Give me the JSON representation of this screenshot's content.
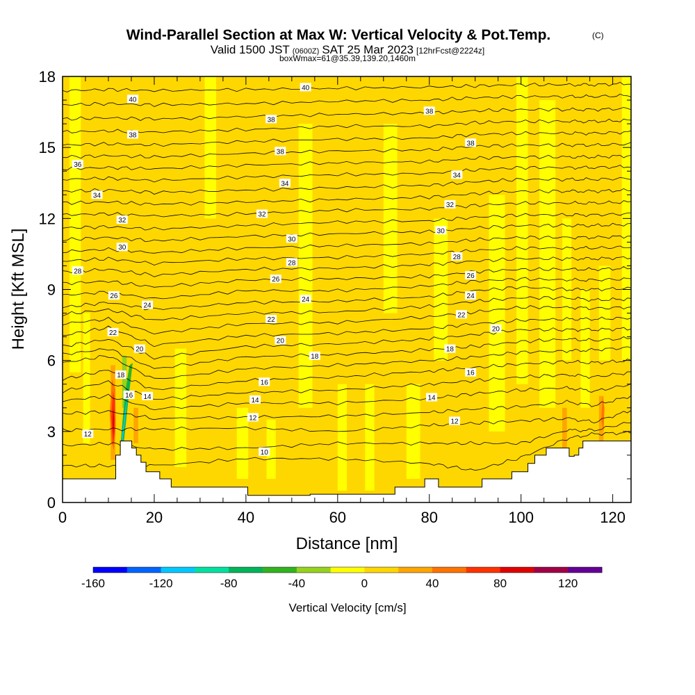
{
  "chart_data": {
    "type": "heatmap",
    "title": "Wind-Parallel Section at Max W: Vertical Velocity & Pot.Temp.",
    "title_mark": "(C)",
    "subtitle_main_a": "Valid 1500 JST",
    "subtitle_small_a": "(0600Z)",
    "subtitle_main_b": "SAT 25 Mar 2023",
    "subtitle_small_b": "[12hrFcst@2224z]",
    "subtitle2": "boxWmax=61@35.39,139.20,1460m",
    "xlabel": "Distance [nm]",
    "ylabel": "Height [Kft MSL]",
    "xlim": [
      0,
      124
    ],
    "ylim": [
      0,
      18
    ],
    "x_ticks": [
      0,
      20,
      40,
      60,
      80,
      100,
      120
    ],
    "y_ticks": [
      0,
      3,
      6,
      9,
      12,
      15,
      18
    ],
    "colorbar": {
      "label": "Vertical Velocity [cm/s]",
      "min": -160,
      "max": 140,
      "step": 20,
      "tick_values": [
        -160,
        -120,
        -80,
        -40,
        0,
        40,
        80,
        120
      ],
      "tick_labels": [
        "-160",
        "-120",
        "-80",
        "-40",
        "0",
        "40",
        "80",
        "120"
      ],
      "colors": [
        "#0000ff",
        "#0064ff",
        "#00c8ff",
        "#00e1a0",
        "#00b45a",
        "#32b41e",
        "#96d21e",
        "#ffff00",
        "#ffd700",
        "#ffa500",
        "#ff7300",
        "#ff3200",
        "#e10000",
        "#a00046",
        "#640096"
      ]
    },
    "terrain": [
      [
        0,
        1.0
      ],
      [
        11.6,
        1.0
      ],
      [
        11.6,
        2.0
      ],
      [
        12.6,
        2.0
      ],
      [
        12.6,
        2.6
      ],
      [
        15.1,
        2.6
      ],
      [
        15.1,
        2.3
      ],
      [
        16.1,
        2.3
      ],
      [
        16.1,
        2.0
      ],
      [
        17.1,
        2.0
      ],
      [
        17.1,
        1.7
      ],
      [
        18.2,
        1.7
      ],
      [
        18.2,
        1.3
      ],
      [
        21.2,
        1.3
      ],
      [
        21.2,
        1.0
      ],
      [
        23.7,
        1.0
      ],
      [
        23.7,
        0.65
      ],
      [
        40.4,
        0.65
      ],
      [
        40.4,
        0.3
      ],
      [
        54.0,
        0.3
      ],
      [
        54.0,
        0.35
      ],
      [
        72.5,
        0.35
      ],
      [
        72.5,
        0.65
      ],
      [
        79.0,
        0.65
      ],
      [
        79.0,
        1.0
      ],
      [
        82.0,
        1.0
      ],
      [
        82.0,
        0.65
      ],
      [
        91.5,
        0.65
      ],
      [
        91.5,
        1.0
      ],
      [
        98.0,
        1.0
      ],
      [
        98.0,
        1.3
      ],
      [
        101.5,
        1.3
      ],
      [
        101.5,
        1.65
      ],
      [
        103.0,
        1.65
      ],
      [
        103.0,
        2.0
      ],
      [
        105.5,
        2.0
      ],
      [
        105.5,
        2.3
      ],
      [
        110.5,
        2.3
      ],
      [
        110.5,
        1.95
      ],
      [
        111.6,
        1.95
      ],
      [
        111.6,
        2.0
      ],
      [
        112.6,
        2.0
      ],
      [
        112.6,
        2.3
      ],
      [
        113.5,
        2.3
      ],
      [
        113.5,
        2.6
      ],
      [
        124,
        2.6
      ]
    ],
    "w_bands": [
      {
        "x0": 0,
        "x1": 124,
        "y0": 0,
        "y1": 18,
        "w": 10
      },
      {
        "x0": 1.5,
        "x1": 4.0,
        "y0": 5.5,
        "y1": 18,
        "w": -10
      },
      {
        "x0": 4.5,
        "x1": 6.0,
        "y0": 2.5,
        "y1": 8.0,
        "w": -10
      },
      {
        "x0": 24.5,
        "x1": 27.0,
        "y0": 1.5,
        "y1": 6.5,
        "w": -10
      },
      {
        "x0": 31.0,
        "x1": 33.5,
        "y0": 12.0,
        "y1": 18,
        "w": -10
      },
      {
        "x0": 38.0,
        "x1": 40.5,
        "y0": 1.0,
        "y1": 4.0,
        "w": -10
      },
      {
        "x0": 44.5,
        "x1": 46.5,
        "y0": 1.0,
        "y1": 3.5,
        "w": -10
      },
      {
        "x0": 51.5,
        "x1": 54.5,
        "y0": 4.0,
        "y1": 16.0,
        "w": -10
      },
      {
        "x0": 60.0,
        "x1": 62.0,
        "y0": 0.5,
        "y1": 5.0,
        "w": -10
      },
      {
        "x0": 66.0,
        "x1": 68.0,
        "y0": 0.5,
        "y1": 5.0,
        "w": -10
      },
      {
        "x0": 70.0,
        "x1": 73.0,
        "y0": 8.0,
        "y1": 16.0,
        "w": -10
      },
      {
        "x0": 75.0,
        "x1": 78.0,
        "y0": 1.0,
        "y1": 5.0,
        "w": -10
      },
      {
        "x0": 81.0,
        "x1": 84.0,
        "y0": 6.0,
        "y1": 12.0,
        "w": -10
      },
      {
        "x0": 93.0,
        "x1": 96.5,
        "y0": 3.0,
        "y1": 13.0,
        "w": -10
      },
      {
        "x0": 99.0,
        "x1": 101.5,
        "y0": 5.0,
        "y1": 18,
        "w": -10
      },
      {
        "x0": 104.0,
        "x1": 107.5,
        "y0": 4.0,
        "y1": 17.0,
        "w": -10
      },
      {
        "x0": 109.0,
        "x1": 111.0,
        "y0": 6.0,
        "y1": 12.0,
        "w": -10
      },
      {
        "x0": 113.0,
        "x1": 115.0,
        "y0": 4.0,
        "y1": 9.0,
        "w": -10
      },
      {
        "x0": 117.0,
        "x1": 119.5,
        "y0": 6.0,
        "y1": 14.0,
        "w": -10
      },
      {
        "x0": 122.0,
        "x1": 124.0,
        "y0": 6.0,
        "y1": 18,
        "w": -10
      },
      {
        "x0": 116.5,
        "x1": 120.0,
        "y0": 10.0,
        "y1": 18,
        "w": 10
      },
      {
        "x0": 10.5,
        "x1": 11.5,
        "y0": 1.8,
        "y1": 5.8,
        "w": 30
      },
      {
        "x0": 15.5,
        "x1": 16.5,
        "y0": 2.5,
        "y1": 4.0,
        "w": 30
      },
      {
        "x0": 109.0,
        "x1": 110.0,
        "y0": 2.3,
        "y1": 4.0,
        "w": 30
      },
      {
        "x0": 117.0,
        "x1": 118.0,
        "y0": 2.6,
        "y1": 4.5,
        "w": 30
      },
      {
        "x0": 13.0,
        "x1": 14.0,
        "y0": 4.0,
        "y1": 6.2,
        "w": -30
      }
    ],
    "w_shapes": [
      {
        "w": 50,
        "points": [
          [
            10.3,
            3.8
          ],
          [
            10.8,
            5.2
          ],
          [
            11.5,
            4.8
          ],
          [
            11.6,
            3.2
          ],
          [
            11.2,
            2.2
          ],
          [
            10.6,
            2.6
          ]
        ]
      },
      {
        "w": 70,
        "points": [
          [
            10.6,
            3.6
          ],
          [
            11.0,
            4.7
          ],
          [
            11.4,
            4.3
          ],
          [
            11.4,
            3.0
          ],
          [
            11.0,
            2.4
          ]
        ]
      },
      {
        "w": 90,
        "points": [
          [
            10.9,
            3.4
          ],
          [
            11.1,
            4.0
          ],
          [
            11.3,
            3.5
          ],
          [
            11.1,
            2.8
          ]
        ]
      },
      {
        "w": -50,
        "points": [
          [
            12.7,
            2.6
          ],
          [
            13.6,
            4.6
          ],
          [
            14.6,
            5.8
          ],
          [
            15.3,
            5.9
          ],
          [
            14.4,
            4.4
          ],
          [
            13.4,
            2.6
          ]
        ]
      },
      {
        "w": -70,
        "points": [
          [
            12.8,
            2.6
          ],
          [
            13.7,
            4.3
          ],
          [
            14.4,
            5.3
          ],
          [
            14.7,
            5.1
          ],
          [
            13.9,
            3.8
          ],
          [
            13.2,
            2.6
          ]
        ]
      },
      {
        "w": -110,
        "points": [
          [
            12.9,
            2.7
          ],
          [
            13.7,
            4.0
          ],
          [
            14.2,
            4.5
          ],
          [
            13.6,
            3.4
          ],
          [
            13.1,
            2.6
          ]
        ]
      },
      {
        "w": 50,
        "points": [
          [
            117.5,
            3.5
          ],
          [
            117.8,
            4.5
          ],
          [
            118.2,
            4.0
          ],
          [
            118.0,
            3.0
          ]
        ]
      }
    ],
    "theta_levels": [
      10,
      11,
      12,
      13,
      14,
      15,
      16,
      17,
      18,
      19,
      20,
      21,
      22,
      23,
      24,
      25,
      26,
      27,
      28,
      29,
      30,
      31,
      32,
      33,
      34,
      35,
      36,
      37,
      38,
      39,
      40,
      41
    ],
    "theta_height_profiles": [
      {
        "x": 0,
        "h": [
          1.55,
          2.4,
          3.05,
          3.75,
          4.3,
          4.7,
          5.2,
          5.9,
          6.25,
          6.6,
          7.05,
          7.55,
          7.95,
          8.25,
          8.75,
          9.25,
          9.75,
          10.2,
          10.6,
          11.1,
          11.6,
          12.15,
          12.65,
          13.15,
          13.65,
          14.1,
          14.6,
          15.1,
          15.65,
          16.2,
          16.8,
          17.4
        ]
      },
      {
        "x": 10,
        "h": [
          1.55,
          2.5,
          3.1,
          3.85,
          4.5,
          5.1,
          5.6,
          6.2,
          6.5,
          6.9,
          7.4,
          7.75,
          8.15,
          8.45,
          8.9,
          9.35,
          9.85,
          10.3,
          10.7,
          11.2,
          11.65,
          12.2,
          12.7,
          13.2,
          13.7,
          14.15,
          14.65,
          15.15,
          15.7,
          16.25,
          16.85,
          17.45
        ]
      },
      {
        "x": 20,
        "h": [
          1.55,
          2.25,
          3.1,
          3.55,
          3.95,
          4.35,
          4.75,
          5.2,
          5.65,
          6.1,
          6.65,
          7.15,
          7.7,
          8.15,
          8.6,
          9.1,
          9.6,
          10.1,
          10.55,
          11.05,
          11.55,
          12.1,
          12.6,
          13.1,
          13.6,
          14.1,
          14.6,
          15.1,
          15.65,
          16.2,
          16.8,
          17.4
        ]
      },
      {
        "x": 40,
        "h": [
          1.85,
          2.3,
          3.15,
          3.6,
          4.2,
          4.65,
          5.15,
          5.65,
          6.15,
          6.6,
          7.05,
          7.55,
          8.0,
          8.45,
          8.95,
          9.4,
          9.85,
          10.3,
          10.75,
          11.25,
          11.7,
          12.2,
          12.7,
          13.2,
          13.75,
          14.25,
          14.75,
          15.25,
          15.75,
          16.3,
          16.85,
          17.45
        ]
      },
      {
        "x": 60,
        "h": [
          1.85,
          2.5,
          3.0,
          3.65,
          4.2,
          4.75,
          5.3,
          5.8,
          6.25,
          6.7,
          7.15,
          7.6,
          8.05,
          8.5,
          8.95,
          9.45,
          9.9,
          10.35,
          10.85,
          11.35,
          11.85,
          12.35,
          12.8,
          13.3,
          13.85,
          14.35,
          14.85,
          15.35,
          15.9,
          16.4,
          16.95,
          17.5
        ]
      },
      {
        "x": 80,
        "h": [
          1.65,
          2.5,
          3.25,
          3.8,
          4.4,
          5.0,
          5.55,
          6.0,
          6.45,
          6.9,
          7.35,
          7.85,
          8.3,
          8.7,
          9.15,
          9.55,
          10.05,
          10.5,
          10.95,
          11.45,
          11.9,
          12.4,
          12.9,
          13.4,
          13.9,
          14.4,
          14.9,
          15.4,
          15.9,
          16.45,
          17.0,
          17.55
        ]
      },
      {
        "x": 90,
        "h": [
          1.35,
          2.5,
          3.35,
          3.95,
          4.6,
          5.15,
          5.7,
          6.15,
          6.6,
          7.1,
          7.55,
          8.05,
          8.5,
          8.95,
          9.35,
          9.75,
          10.2,
          10.65,
          11.1,
          11.6,
          12.05,
          12.55,
          13.05,
          13.55,
          14.05,
          14.55,
          15.05,
          15.55,
          16.05,
          16.55,
          17.1,
          17.6
        ]
      },
      {
        "x": 100,
        "h": [
          1.9,
          2.5,
          3.45,
          4.05,
          4.75,
          5.3,
          5.85,
          6.35,
          6.8,
          7.3,
          7.7,
          8.25,
          8.65,
          9.1,
          9.45,
          9.85,
          10.3,
          10.75,
          11.2,
          11.7,
          12.15,
          12.65,
          13.15,
          13.65,
          14.15,
          14.6,
          15.1,
          15.6,
          16.1,
          16.6,
          17.15,
          17.65
        ]
      },
      {
        "x": 110,
        "h": [
          2.7,
          3.05,
          3.55,
          4.25,
          4.85,
          5.4,
          5.95,
          6.4,
          6.9,
          7.3,
          7.75,
          8.25,
          8.65,
          9.0,
          9.4,
          9.85,
          10.3,
          10.75,
          11.2,
          11.7,
          12.15,
          12.65,
          13.15,
          13.65,
          14.15,
          14.6,
          15.1,
          15.6,
          16.1,
          16.6,
          17.15,
          17.65
        ]
      },
      {
        "x": 116,
        "h": [
          2.9,
          3.05,
          3.4,
          4.1,
          4.7,
          5.3,
          5.9,
          6.45,
          6.85,
          7.3,
          7.75,
          8.2,
          8.55,
          9.0,
          9.4,
          9.85,
          10.3,
          10.75,
          11.2,
          11.7,
          12.15,
          12.65,
          13.15,
          13.65,
          14.15,
          14.6,
          15.1,
          15.6,
          16.1,
          16.6,
          17.15,
          17.65
        ]
      },
      {
        "x": 124,
        "h": [
          2.95,
          3.4,
          3.9,
          4.5,
          5.0,
          5.5,
          6.0,
          6.55,
          6.95,
          7.35,
          7.8,
          8.25,
          8.6,
          9.05,
          9.45,
          9.9,
          10.35,
          10.8,
          11.25,
          11.75,
          12.2,
          12.7,
          13.2,
          13.7,
          14.2,
          14.65,
          15.15,
          15.65,
          16.15,
          16.65,
          17.2,
          17.7
        ]
      }
    ],
    "contour_labels": [
      {
        "text": "40",
        "x": 53.0,
        "y": 17.55
      },
      {
        "text": "40",
        "x": 15.3,
        "y": 17.05
      },
      {
        "text": "38",
        "x": 80.0,
        "y": 16.55
      },
      {
        "text": "38",
        "x": 45.5,
        "y": 16.2
      },
      {
        "text": "38",
        "x": 15.3,
        "y": 15.55
      },
      {
        "text": "38",
        "x": 89.0,
        "y": 15.2
      },
      {
        "text": "38",
        "x": 47.5,
        "y": 14.85
      },
      {
        "text": "36",
        "x": 3.3,
        "y": 14.3
      },
      {
        "text": "34",
        "x": 86.0,
        "y": 13.85
      },
      {
        "text": "34",
        "x": 48.5,
        "y": 13.5
      },
      {
        "text": "34",
        "x": 7.5,
        "y": 13.0
      },
      {
        "text": "32",
        "x": 84.5,
        "y": 12.6
      },
      {
        "text": "32",
        "x": 43.5,
        "y": 12.2
      },
      {
        "text": "32",
        "x": 13.0,
        "y": 11.95
      },
      {
        "text": "30",
        "x": 82.5,
        "y": 11.5
      },
      {
        "text": "30",
        "x": 50.0,
        "y": 11.15
      },
      {
        "text": "30",
        "x": 13.0,
        "y": 10.8
      },
      {
        "text": "28",
        "x": 86.0,
        "y": 10.4
      },
      {
        "text": "28",
        "x": 50.0,
        "y": 10.15
      },
      {
        "text": "28",
        "x": 3.3,
        "y": 9.8
      },
      {
        "text": "26",
        "x": 89.0,
        "y": 9.6
      },
      {
        "text": "26",
        "x": 46.5,
        "y": 9.45
      },
      {
        "text": "26",
        "x": 11.2,
        "y": 8.75
      },
      {
        "text": "24",
        "x": 89.0,
        "y": 8.75
      },
      {
        "text": "24",
        "x": 53.0,
        "y": 8.6
      },
      {
        "text": "24",
        "x": 18.5,
        "y": 8.35
      },
      {
        "text": "22",
        "x": 87.0,
        "y": 7.95
      },
      {
        "text": "22",
        "x": 45.5,
        "y": 7.75
      },
      {
        "text": "22",
        "x": 11.0,
        "y": 7.2
      },
      {
        "text": "20",
        "x": 94.5,
        "y": 7.35
      },
      {
        "text": "20",
        "x": 47.5,
        "y": 6.85
      },
      {
        "text": "20",
        "x": 16.8,
        "y": 6.5
      },
      {
        "text": "18",
        "x": 84.5,
        "y": 6.5
      },
      {
        "text": "18",
        "x": 55.0,
        "y": 6.2
      },
      {
        "text": "18",
        "x": 12.7,
        "y": 5.4
      },
      {
        "text": "16",
        "x": 89.0,
        "y": 5.5
      },
      {
        "text": "16",
        "x": 44.0,
        "y": 5.1
      },
      {
        "text": "16",
        "x": 14.5,
        "y": 4.55
      },
      {
        "text": "14",
        "x": 18.5,
        "y": 4.5
      },
      {
        "text": "14",
        "x": 42.0,
        "y": 4.35
      },
      {
        "text": "14",
        "x": 80.5,
        "y": 4.45
      },
      {
        "text": "12",
        "x": 41.5,
        "y": 3.6
      },
      {
        "text": "12",
        "x": 85.5,
        "y": 3.45
      },
      {
        "text": "12",
        "x": 5.5,
        "y": 2.9
      },
      {
        "text": "10",
        "x": 44.0,
        "y": 2.15
      }
    ]
  }
}
